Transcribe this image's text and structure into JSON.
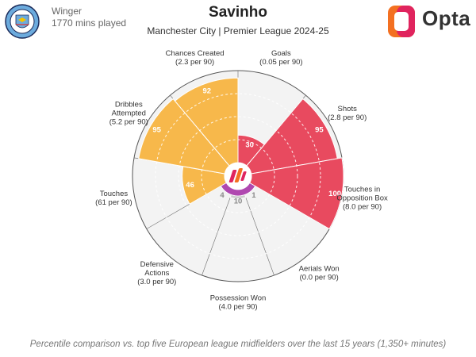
{
  "header": {
    "position": "Winger",
    "minutes": "1770 mins played",
    "player": "Savinho",
    "subtitle": "Manchester City | Premier League 2024-25",
    "brand": "Opta",
    "crest_text": "MANCHESTER CITY"
  },
  "footnote": "Percentile comparison vs. top five European league midfielders over the last 15 years (1,350+ minutes)",
  "colors": {
    "possession": "#f7b84b",
    "attacking": "#e84a5f",
    "defending": "#cccccc",
    "base": "#b048b0",
    "grid": "#cccccc",
    "brand_orange": "#f37021",
    "brand_pink": "#e0245e"
  },
  "chart_data": {
    "type": "polar-area",
    "title": "Savinho",
    "subtitle": "Manchester City | Premier League 2024-25",
    "rlim": [
      0,
      100
    ],
    "metrics": [
      {
        "name": "Goals",
        "per90": "(0.05 per 90)",
        "percentile": 30,
        "group": "attacking"
      },
      {
        "name": "Shots",
        "per90": "(2.8 per 90)",
        "percentile": 95,
        "group": "attacking"
      },
      {
        "name": "Touches in Opposition Box",
        "per90": "(8.0 per 90)",
        "percentile": 100,
        "group": "attacking"
      },
      {
        "name": "Aerials Won",
        "per90": "(0.0 per 90)",
        "percentile": 1,
        "group": "defending"
      },
      {
        "name": "Possession Won",
        "per90": "(4.0 per 90)",
        "percentile": 10,
        "group": "defending"
      },
      {
        "name": "Defensive Actions",
        "per90": "(3.0 per 90)",
        "percentile": 4,
        "group": "defending"
      },
      {
        "name": "Touches",
        "per90": "(61 per 90)",
        "percentile": 46,
        "group": "possession"
      },
      {
        "name": "Dribbles Attempted",
        "per90": "(5.2 per 90)",
        "percentile": 95,
        "group": "possession"
      },
      {
        "name": "Chances Created",
        "per90": "(2.3 per 90)",
        "percentile": 92,
        "group": "possession"
      }
    ],
    "label_lines": [
      [
        "Goals"
      ],
      [
        "Shots"
      ],
      [
        "Touches in",
        "Opposition Box"
      ],
      [
        "Aerials Won"
      ],
      [
        "Possession Won"
      ],
      [
        "Defensive",
        "Actions"
      ],
      [
        "Touches"
      ],
      [
        "Dribbles",
        "Attempted"
      ],
      [
        "Chances Created"
      ]
    ]
  }
}
